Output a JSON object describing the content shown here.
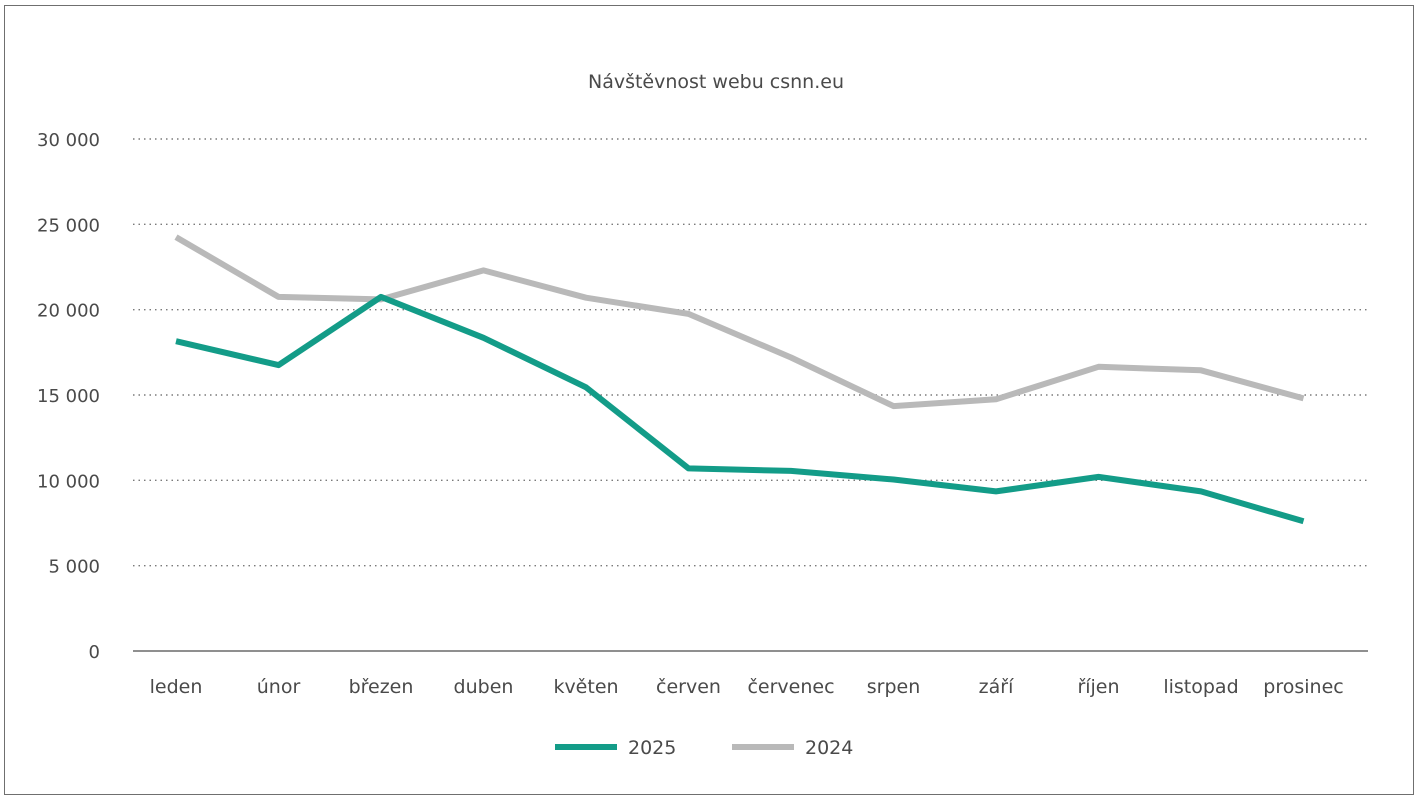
{
  "chart_data": {
    "type": "line",
    "title": "Návštěvnost webu csnn.eu",
    "categories": [
      "leden",
      "únor",
      "březen",
      "duben",
      "květen",
      "červen",
      "červenec",
      "srpen",
      "září",
      "říjen",
      "listopad",
      "prosinec"
    ],
    "series": [
      {
        "name": "2025",
        "color": "#139c88",
        "values": [
          18150,
          16750,
          20750,
          18350,
          15450,
          10700,
          10550,
          10050,
          9350,
          10200,
          9350,
          7600
        ]
      },
      {
        "name": "2024",
        "color": "#b9b9b9",
        "values": [
          24250,
          20750,
          20600,
          22300,
          20700,
          19750,
          17200,
          14350,
          14750,
          16650,
          16450,
          14800
        ]
      }
    ],
    "y_ticks": [
      "0",
      "5 000",
      "10 000",
      "15 000",
      "20 000",
      "25 000",
      "30 000"
    ],
    "ylim": [
      0,
      30000
    ],
    "grid": "horizontal dotted",
    "legend": "bottom-center"
  }
}
